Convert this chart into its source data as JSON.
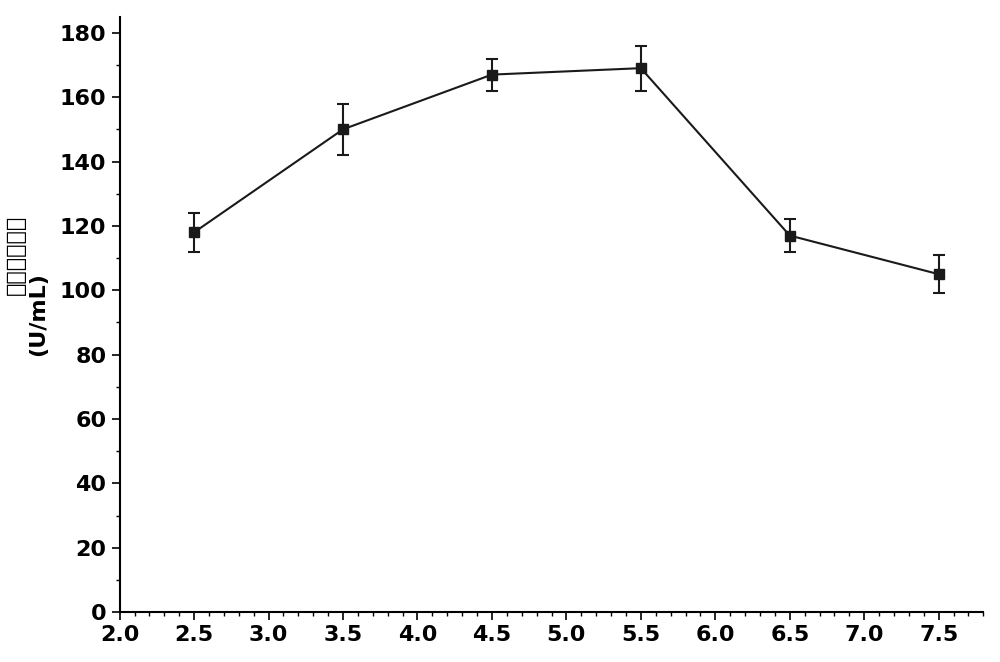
{
  "x": [
    2.5,
    3.5,
    4.5,
    5.5,
    6.5,
    7.5
  ],
  "y": [
    118,
    150,
    167,
    169,
    117,
    105
  ],
  "yerr": [
    6,
    8,
    5,
    7,
    5,
    6
  ],
  "xlim": [
    2.0,
    7.8
  ],
  "ylim": [
    0,
    185
  ],
  "xticks": [
    2.0,
    2.5,
    3.0,
    3.5,
    4.0,
    4.5,
    5.0,
    5.5,
    6.0,
    6.5,
    7.0,
    7.5
  ],
  "yticks": [
    0,
    20,
    40,
    60,
    80,
    100,
    120,
    140,
    160,
    180
  ],
  "ylabel_line1": "生淠粉酶产量",
  "ylabel_line2": "(U/mL)",
  "background_color": "#ffffff",
  "line_color": "#1a1a1a",
  "marker": "s",
  "marker_size": 7,
  "line_width": 1.5,
  "tick_fontsize": 16,
  "label_fontsize": 16,
  "tick_fontweight": "bold"
}
